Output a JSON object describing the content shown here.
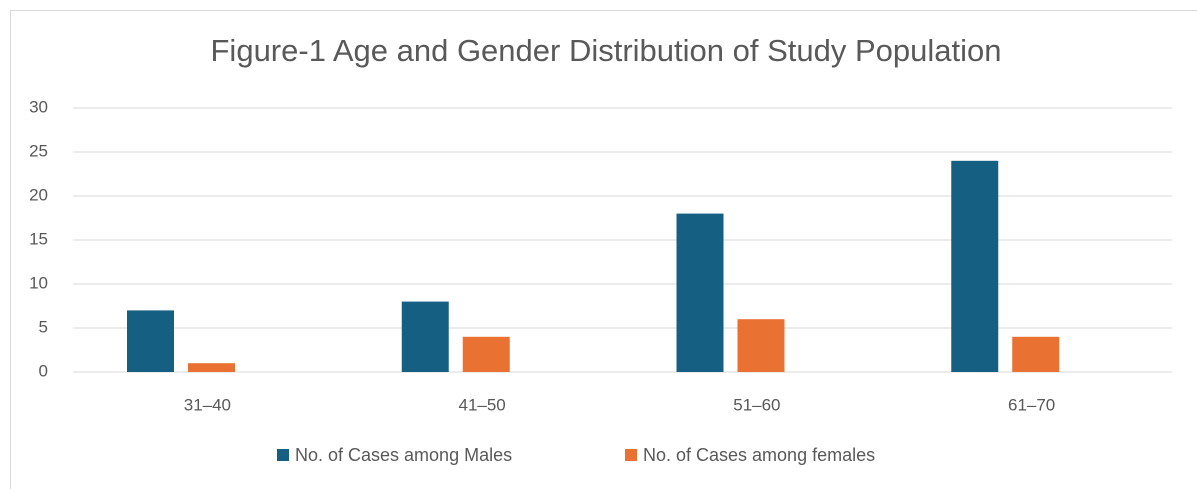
{
  "chart_data": {
    "type": "bar",
    "title": "Figure-1 Age and Gender Distribution of Study Population",
    "categories": [
      "31–40",
      "41–50",
      "51–60",
      "61–70"
    ],
    "series": [
      {
        "name": "No. of Cases among Males",
        "color": "#156082",
        "values": [
          7,
          8,
          18,
          24
        ]
      },
      {
        "name": "No. of Cases among females",
        "color": "#e97132",
        "values": [
          1,
          4,
          6,
          4
        ]
      }
    ],
    "ylim": [
      0,
      30
    ],
    "yticks": [
      0,
      5,
      10,
      15,
      20,
      25,
      30
    ],
    "grid": true,
    "legend": "bottom"
  }
}
